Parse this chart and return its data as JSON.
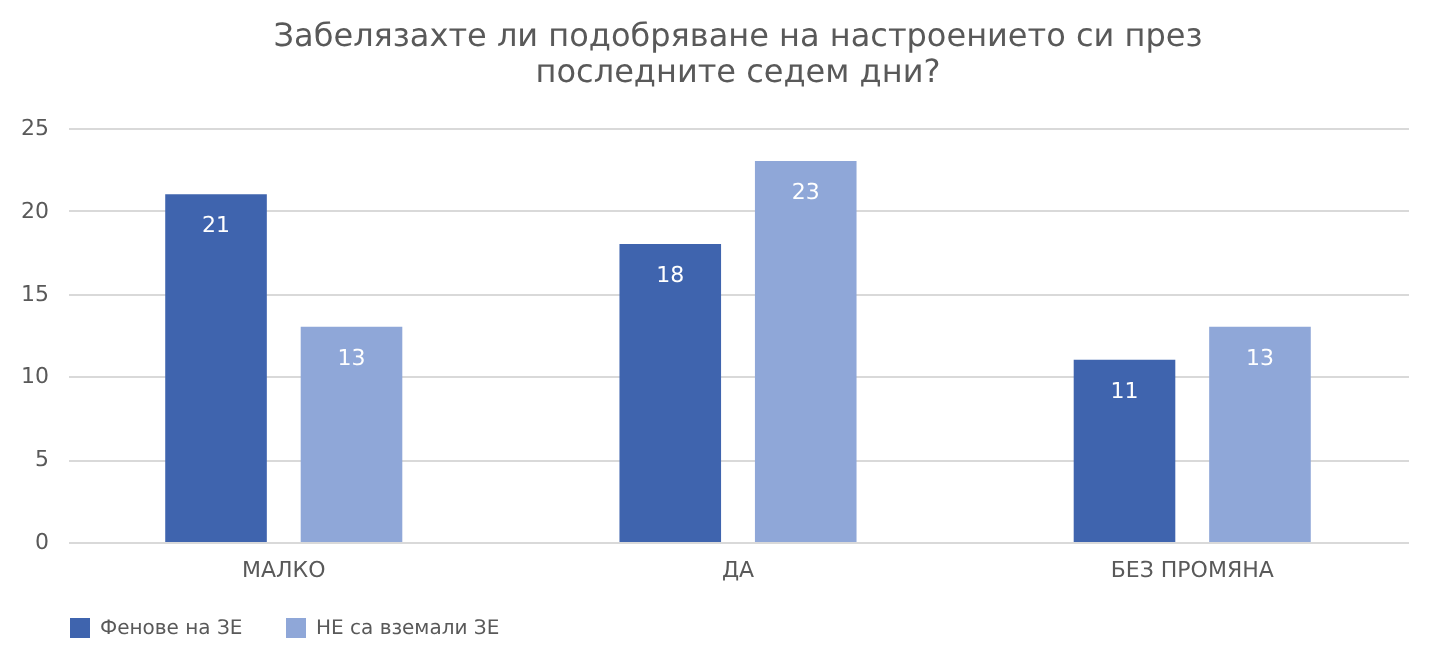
{
  "chart_data": {
    "type": "bar",
    "title": "Забелязахте ли подобряване на настроението си през последните седем дни?",
    "categories": [
      "МАЛКО",
      "ДА",
      "БЕЗ ПРОМЯНА"
    ],
    "series": [
      {
        "name": "Фенове на ЗЕ",
        "color": "#3f64ae",
        "values": [
          21,
          18,
          11
        ]
      },
      {
        "name": "НЕ са вземали ЗЕ",
        "color": "#8fa7d8",
        "values": [
          13,
          23,
          13
        ]
      }
    ],
    "ylim": [
      0,
      25
    ],
    "yticks": [
      0,
      5,
      10,
      15,
      20,
      25
    ],
    "grid": "y",
    "legend": "bottom",
    "data_labels": true
  }
}
